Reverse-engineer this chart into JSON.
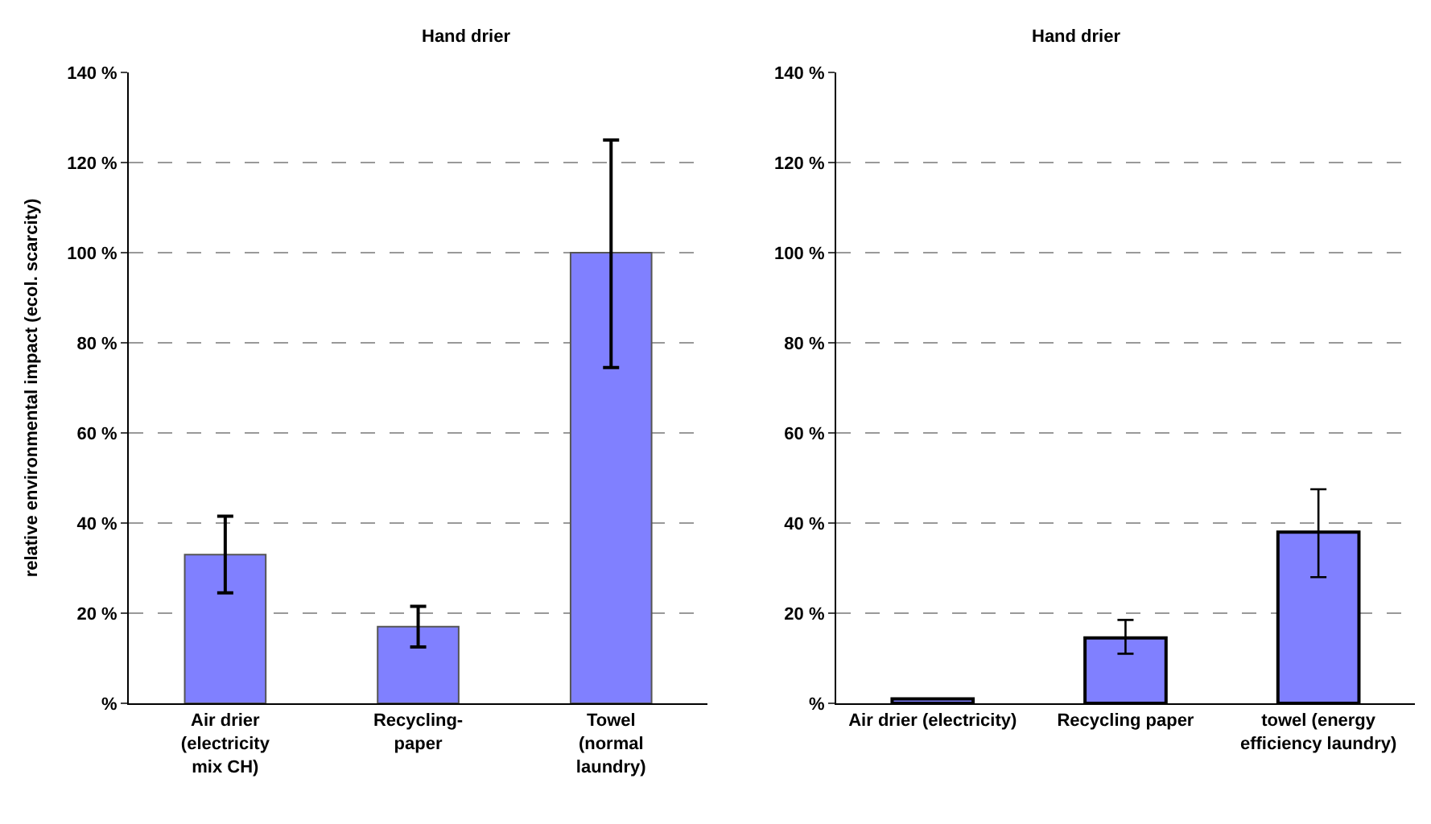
{
  "chart_data": [
    {
      "type": "bar",
      "title": "Hand drier",
      "ylabel": "relative environmental impact (ecol. scarcity)",
      "categories": [
        "Air drier\n(electricity\nmix CH)",
        "Recycling-\npaper",
        "Towel\n(normal\nlaundry)"
      ],
      "values": [
        33,
        17,
        100
      ],
      "color": "#8080ff",
      "errors": [
        [
          24.5,
          41.5
        ],
        [
          12.5,
          21.5
        ],
        [
          74.5,
          125
        ]
      ],
      "ylim": [
        0,
        140
      ],
      "yticks": [
        {
          "value": 0,
          "label": "%"
        },
        {
          "value": 20,
          "label": "20 %"
        },
        {
          "value": 40,
          "label": "40 %"
        },
        {
          "value": 60,
          "label": "60 %"
        },
        {
          "value": 80,
          "label": "80 %"
        },
        {
          "value": 100,
          "label": "100 %"
        },
        {
          "value": 120,
          "label": "120 %"
        },
        {
          "value": 140,
          "label": "140 %"
        }
      ],
      "grid": "y"
    },
    {
      "type": "bar",
      "title": "Hand drier",
      "categories": [
        "Air drier (electricity)",
        "Recycling paper",
        "towel (energy\nefficiency laundry)"
      ],
      "values": [
        1,
        14.5,
        38
      ],
      "color": "#8080ff",
      "errors": [
        null,
        [
          11,
          18.5
        ],
        [
          28,
          47.5
        ]
      ],
      "ylim": [
        0,
        140
      ],
      "yticks": [
        {
          "value": 0,
          "label": "%"
        },
        {
          "value": 20,
          "label": "20 %"
        },
        {
          "value": 40,
          "label": "40 %"
        },
        {
          "value": 60,
          "label": "60 %"
        },
        {
          "value": 80,
          "label": "80 %"
        },
        {
          "value": 100,
          "label": "100 %"
        },
        {
          "value": 120,
          "label": "120 %"
        },
        {
          "value": 140,
          "label": "140 %"
        }
      ],
      "grid": "y"
    }
  ]
}
